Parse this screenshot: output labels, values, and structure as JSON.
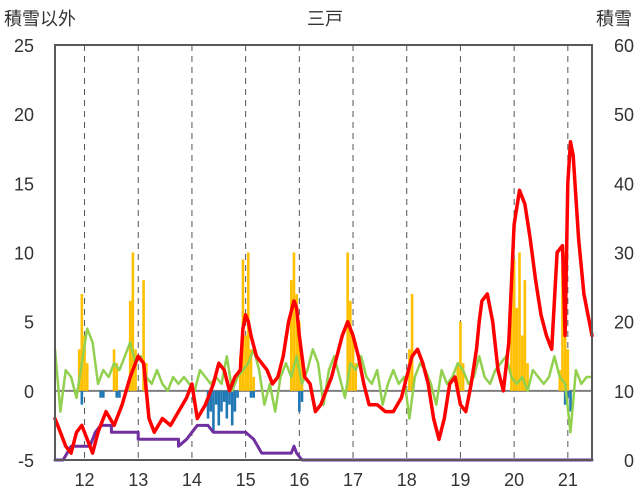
{
  "chart_data": {
    "type": "line",
    "title": "三戸",
    "left_axis_label": "積雪以外",
    "right_axis_label": "積雪",
    "x_ticks": [
      "12",
      "13",
      "14",
      "15",
      "16",
      "17",
      "18",
      "19",
      "20",
      "21"
    ],
    "x_range": [
      11.45,
      21.45
    ],
    "y_left_ticks": [
      "-5",
      "0",
      "5",
      "10",
      "15",
      "20",
      "25"
    ],
    "y_left_range": [
      -5,
      25
    ],
    "y_right_ticks": [
      "0",
      "10",
      "20",
      "30",
      "40",
      "50",
      "60"
    ],
    "y_right_range": [
      0,
      60
    ],
    "grid": "vertical dashed at each day",
    "colors": {
      "temperature": "#ff0000",
      "wind": "#92d050",
      "snow_depth": "#7030a0",
      "precipitation": "#ffc000",
      "negative_bars": "#1f77b4",
      "axis": "#595959",
      "zero_line": "#7f7f7f"
    },
    "series": [
      {
        "key": "temperature",
        "axis": "left",
        "x": [
          11.45,
          11.55,
          11.65,
          11.75,
          11.85,
          11.95,
          12.05,
          12.15,
          12.25,
          12.4,
          12.55,
          12.7,
          12.85,
          13.0,
          13.1,
          13.2,
          13.3,
          13.45,
          13.6,
          13.75,
          13.9,
          14.0,
          14.1,
          14.25,
          14.4,
          14.5,
          14.6,
          14.7,
          14.8,
          14.9,
          14.95,
          15.0,
          15.05,
          15.1,
          15.2,
          15.3,
          15.4,
          15.5,
          15.6,
          15.7,
          15.8,
          15.9,
          15.95,
          16.0,
          16.05,
          16.1,
          16.2,
          16.3,
          16.4,
          16.5,
          16.6,
          16.7,
          16.8,
          16.9,
          17.0,
          17.1,
          17.2,
          17.3,
          17.45,
          17.6,
          17.75,
          17.9,
          18.0,
          18.1,
          18.2,
          18.3,
          18.4,
          18.5,
          18.6,
          18.7,
          18.8,
          18.9,
          19.0,
          19.1,
          19.2,
          19.3,
          19.35,
          19.4,
          19.5,
          19.6,
          19.7,
          19.8,
          19.9,
          20.0,
          20.1,
          20.2,
          20.3,
          20.4,
          20.5,
          20.6,
          20.7,
          20.8,
          20.9,
          20.95,
          21.0,
          21.05,
          21.1,
          21.2,
          21.3,
          21.4,
          21.45
        ],
        "y": [
          -2.0,
          -3.0,
          -4.0,
          -4.5,
          -3.0,
          -2.5,
          -3.5,
          -4.5,
          -3.0,
          -1.5,
          -2.5,
          -1.0,
          1.0,
          2.5,
          2.0,
          -2.0,
          -3.0,
          -2.0,
          -2.5,
          -1.5,
          -0.5,
          0.5,
          -2.0,
          -1.0,
          0.5,
          2.0,
          1.5,
          0.0,
          1.0,
          1.5,
          4.5,
          5.5,
          5.0,
          4.0,
          2.5,
          2.0,
          1.5,
          0.5,
          1.0,
          2.5,
          5.0,
          6.5,
          6.0,
          4.0,
          2.5,
          1.0,
          0.5,
          -1.5,
          -1.0,
          0.0,
          1.0,
          2.5,
          4.0,
          5.0,
          4.0,
          2.5,
          0.5,
          -1.0,
          -1.0,
          -1.5,
          -1.5,
          -0.5,
          1.0,
          2.5,
          3.0,
          2.0,
          0.5,
          -2.0,
          -3.5,
          -2.0,
          0.5,
          1.0,
          -1.0,
          -1.5,
          0.5,
          3.0,
          5.0,
          6.5,
          7.0,
          5.0,
          1.5,
          0.0,
          3.5,
          12.0,
          14.5,
          13.5,
          11.0,
          8.0,
          5.5,
          4.0,
          3.0,
          10.0,
          10.5,
          4.0,
          15.0,
          18.0,
          17.0,
          11.0,
          7.0,
          5.0,
          4.0
        ]
      },
      {
        "key": "wind",
        "axis": "left",
        "x": [
          11.45,
          11.55,
          11.65,
          11.75,
          11.85,
          11.95,
          12.05,
          12.15,
          12.25,
          12.35,
          12.45,
          12.55,
          12.65,
          12.75,
          12.85,
          12.95,
          13.05,
          13.15,
          13.25,
          13.35,
          13.45,
          13.55,
          13.65,
          13.75,
          13.85,
          13.95,
          14.05,
          14.15,
          14.25,
          14.35,
          14.45,
          14.55,
          14.65,
          14.75,
          14.85,
          14.95,
          15.05,
          15.15,
          15.25,
          15.35,
          15.45,
          15.55,
          15.65,
          15.75,
          15.85,
          15.95,
          16.05,
          16.15,
          16.25,
          16.35,
          16.45,
          16.55,
          16.65,
          16.75,
          16.85,
          16.95,
          17.05,
          17.15,
          17.25,
          17.35,
          17.45,
          17.55,
          17.65,
          17.75,
          17.85,
          17.95,
          18.05,
          18.15,
          18.25,
          18.35,
          18.45,
          18.55,
          18.65,
          18.75,
          18.85,
          18.95,
          19.05,
          19.15,
          19.25,
          19.35,
          19.45,
          19.55,
          19.65,
          19.75,
          19.85,
          19.95,
          20.05,
          20.15,
          20.25,
          20.35,
          20.45,
          20.55,
          20.65,
          20.75,
          20.85,
          20.95,
          21.05,
          21.15,
          21.25,
          21.35,
          21.45
        ],
        "y": [
          3.0,
          -1.5,
          1.5,
          1.0,
          -0.5,
          2.0,
          4.5,
          3.5,
          0.5,
          1.5,
          1.0,
          2.0,
          1.5,
          2.5,
          3.5,
          2.0,
          2.5,
          1.0,
          0.5,
          1.5,
          0.5,
          0.0,
          1.0,
          0.5,
          1.0,
          0.5,
          0.0,
          1.5,
          1.0,
          0.5,
          1.0,
          0.5,
          2.5,
          0.0,
          1.0,
          1.5,
          2.0,
          3.0,
          1.5,
          -1.0,
          0.5,
          -1.5,
          1.0,
          2.0,
          1.0,
          2.5,
          0.5,
          1.5,
          3.0,
          2.0,
          -1.0,
          1.5,
          2.5,
          1.0,
          -0.5,
          2.0,
          1.5,
          2.5,
          1.0,
          0.5,
          1.5,
          -1.0,
          0.5,
          1.5,
          0.5,
          1.0,
          -2.0,
          1.0,
          2.0,
          1.5,
          0.5,
          -1.0,
          1.5,
          0.5,
          1.0,
          2.0,
          1.5,
          0.5,
          1.0,
          2.5,
          1.0,
          0.5,
          1.5,
          2.0,
          2.5,
          1.0,
          0.5,
          1.0,
          0.0,
          1.5,
          1.0,
          0.5,
          1.0,
          2.5,
          1.0,
          0.5,
          -3.0,
          1.5,
          0.5,
          1.0,
          1.0
        ]
      },
      {
        "key": "snow_depth",
        "axis": "right",
        "x": [
          11.45,
          11.6,
          11.75,
          12.1,
          12.2,
          12.3,
          12.5,
          12.5,
          12.9,
          13.0,
          13.0,
          13.2,
          13.6,
          13.75,
          13.75,
          13.9,
          14.0,
          14.1,
          14.2,
          14.3,
          14.4,
          14.6,
          14.9,
          15.0,
          15.15,
          15.3,
          15.85,
          15.9,
          15.95,
          16.05,
          16.5,
          21.45
        ],
        "y": [
          0,
          0,
          2,
          2,
          4,
          5,
          5,
          4,
          4,
          4,
          3,
          3,
          3,
          3,
          2,
          3,
          4,
          5,
          5,
          5,
          4,
          4,
          4,
          4,
          3,
          1,
          1,
          2,
          1,
          0,
          0,
          0
        ]
      }
    ],
    "bars": [
      {
        "key": "precipitation",
        "axis": "left",
        "x": [
          11.9,
          11.95,
          12.0,
          12.05,
          12.55,
          12.6,
          12.85,
          12.9,
          12.95,
          13.1,
          13.15,
          14.9,
          14.95,
          15.0,
          15.05,
          15.1,
          15.15,
          15.85,
          15.9,
          15.95,
          16.0,
          16.05,
          16.9,
          16.95,
          17.0,
          17.05,
          18.05,
          18.1,
          18.95,
          19.0,
          19.05,
          19.95,
          20.0,
          20.05,
          20.1,
          20.15,
          20.2,
          20.25,
          20.85,
          20.9,
          20.95,
          21.0
        ],
        "y": [
          3.0,
          7.0,
          4.0,
          2.0,
          3.0,
          2.0,
          6.5,
          10.0,
          3.0,
          8.0,
          2.0,
          2.5,
          9.5,
          4.0,
          10.0,
          3.0,
          1.0,
          8.0,
          10.0,
          7.0,
          5.0,
          2.0,
          10.0,
          6.5,
          4.0,
          2.0,
          3.0,
          7.0,
          2.0,
          5.0,
          2.0,
          7.0,
          9.5,
          6.0,
          10.0,
          4.0,
          8.0,
          2.0,
          1.5,
          9.0,
          10.0,
          3.0
        ]
      },
      {
        "key": "negative_bars",
        "axis": "left",
        "x": [
          11.95,
          12.3,
          12.35,
          12.6,
          12.65,
          14.3,
          14.35,
          14.4,
          14.45,
          14.5,
          14.55,
          14.6,
          14.65,
          14.7,
          14.75,
          14.8,
          14.85,
          15.1,
          15.15,
          16.0,
          16.05,
          20.95,
          21.0,
          21.05
        ],
        "y": [
          -1.0,
          -0.5,
          -0.5,
          -0.5,
          -0.5,
          -2.0,
          -1.5,
          -3.0,
          -1.0,
          -2.5,
          -1.5,
          -0.8,
          -2.0,
          -1.0,
          -2.5,
          -1.5,
          -0.5,
          -0.5,
          -0.5,
          -1.5,
          -0.8,
          -1.0,
          -0.5,
          -1.5
        ]
      }
    ]
  }
}
